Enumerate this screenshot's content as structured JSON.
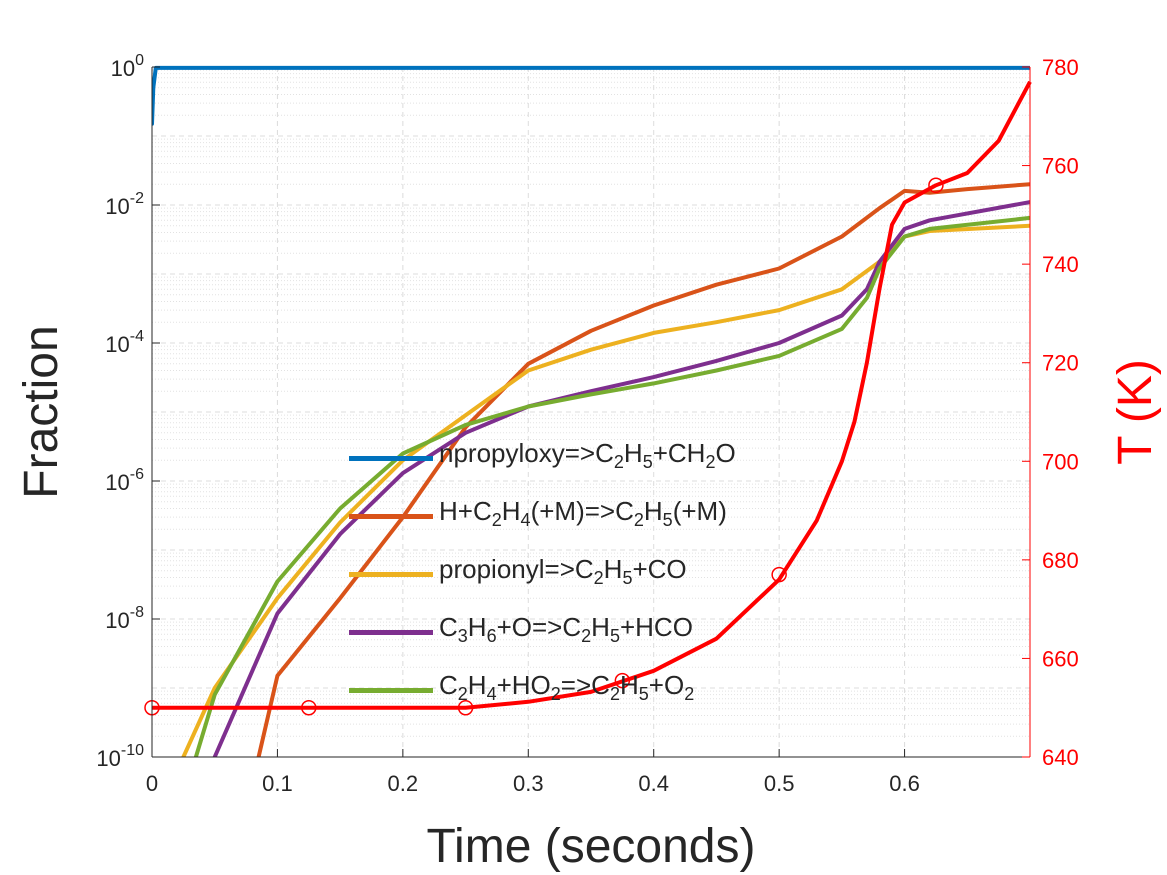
{
  "chart_data": {
    "type": "line",
    "xlabel": "Time (seconds)",
    "ylabel": "Fraction",
    "y2label": "T (K)",
    "xlim": [
      0,
      0.7
    ],
    "ylim": [
      1e-10,
      1
    ],
    "y2lim": [
      640,
      780
    ],
    "yscale": "log",
    "grid": true,
    "xticks": [
      "0",
      "0.1",
      "0.2",
      "0.3",
      "0.4",
      "0.5",
      "0.6"
    ],
    "yticks": [
      {
        "base": "10",
        "exp": "0"
      },
      {
        "base": "10",
        "exp": "-2"
      },
      {
        "base": "10",
        "exp": "-4"
      },
      {
        "base": "10",
        "exp": "-6"
      },
      {
        "base": "10",
        "exp": "-8"
      },
      {
        "base": "10",
        "exp": "-10"
      }
    ],
    "y2ticks": [
      "780",
      "760",
      "740",
      "720",
      "700",
      "680",
      "660",
      "640"
    ],
    "legend_position": "center",
    "series": [
      {
        "name": "npropyloxy=>C2H5+CH2O",
        "label_parts": [
          [
            "npropyloxy=>C",
            ""
          ],
          [
            "2",
            "sub"
          ],
          [
            "H",
            ""
          ],
          [
            "5",
            "sub"
          ],
          [
            "+CH",
            ""
          ],
          [
            "2",
            "sub"
          ],
          [
            "O",
            ""
          ]
        ],
        "color": "#0072bd",
        "points": [
          [
            0,
            0.15
          ],
          [
            0.001,
            0.5
          ],
          [
            0.003,
            0.97
          ],
          [
            0.7,
            0.97
          ]
        ]
      },
      {
        "name": "H+C2H4(+M)=>C2H5(+M)",
        "label_parts": [
          [
            "H+C",
            ""
          ],
          [
            "2",
            "sub"
          ],
          [
            "H",
            ""
          ],
          [
            "4",
            "sub"
          ],
          [
            "(+M)=>C",
            ""
          ],
          [
            "2",
            "sub"
          ],
          [
            "H",
            ""
          ],
          [
            "5",
            "sub"
          ],
          [
            "(+M)",
            ""
          ]
        ],
        "color": "#d95319",
        "points": [
          [
            0.085,
            1e-10
          ],
          [
            0.1,
            1.5e-09
          ],
          [
            0.15,
            2e-08
          ],
          [
            0.2,
            3e-07
          ],
          [
            0.25,
            6e-06
          ],
          [
            0.3,
            5e-05
          ],
          [
            0.35,
            0.00015
          ],
          [
            0.4,
            0.00035
          ],
          [
            0.45,
            0.0007
          ],
          [
            0.5,
            0.0012
          ],
          [
            0.55,
            0.0035
          ],
          [
            0.58,
            0.009
          ],
          [
            0.6,
            0.016
          ],
          [
            0.62,
            0.015
          ],
          [
            0.65,
            0.017
          ],
          [
            0.7,
            0.02
          ]
        ]
      },
      {
        "name": "propionyl=>C2H5+CO",
        "label_parts": [
          [
            "propionyl=>C",
            ""
          ],
          [
            "2",
            "sub"
          ],
          [
            "H",
            ""
          ],
          [
            "5",
            "sub"
          ],
          [
            "+CO",
            ""
          ]
        ],
        "color": "#edb120",
        "points": [
          [
            0.025,
            1e-10
          ],
          [
            0.05,
            1e-09
          ],
          [
            0.1,
            2e-08
          ],
          [
            0.15,
            2.5e-07
          ],
          [
            0.2,
            2e-06
          ],
          [
            0.25,
            9e-06
          ],
          [
            0.3,
            4e-05
          ],
          [
            0.35,
            8e-05
          ],
          [
            0.4,
            0.00014
          ],
          [
            0.45,
            0.0002
          ],
          [
            0.5,
            0.0003
          ],
          [
            0.55,
            0.0006
          ],
          [
            0.58,
            0.0015
          ],
          [
            0.6,
            0.0035
          ],
          [
            0.62,
            0.0042
          ],
          [
            0.7,
            0.005
          ]
        ]
      },
      {
        "name": "C3H6+O=>C2H5+HCO",
        "label_parts": [
          [
            "C",
            ""
          ],
          [
            "3",
            "sub"
          ],
          [
            "H",
            ""
          ],
          [
            "6",
            "sub"
          ],
          [
            "+O=>C",
            ""
          ],
          [
            "2",
            "sub"
          ],
          [
            "H",
            ""
          ],
          [
            "5",
            "sub"
          ],
          [
            "+HCO",
            ""
          ]
        ],
        "color": "#7e2f8e",
        "points": [
          [
            0.05,
            1e-10
          ],
          [
            0.1,
            1.2e-08
          ],
          [
            0.15,
            1.7e-07
          ],
          [
            0.2,
            1.3e-06
          ],
          [
            0.25,
            5e-06
          ],
          [
            0.3,
            1.2e-05
          ],
          [
            0.35,
            2e-05
          ],
          [
            0.4,
            3.2e-05
          ],
          [
            0.45,
            5.5e-05
          ],
          [
            0.5,
            0.0001
          ],
          [
            0.55,
            0.00025
          ],
          [
            0.57,
            0.0006
          ],
          [
            0.58,
            0.0015
          ],
          [
            0.6,
            0.0045
          ],
          [
            0.62,
            0.006
          ],
          [
            0.7,
            0.011
          ]
        ]
      },
      {
        "name": "C2H4+HO2=>C2H5+O2",
        "label_parts": [
          [
            "C",
            ""
          ],
          [
            "2",
            "sub"
          ],
          [
            "H",
            ""
          ],
          [
            "4",
            "sub"
          ],
          [
            "+HO",
            ""
          ],
          [
            "2",
            "sub"
          ],
          [
            "=>C",
            ""
          ],
          [
            "2",
            "sub"
          ],
          [
            "H",
            ""
          ],
          [
            "5",
            "sub"
          ],
          [
            "+O",
            ""
          ],
          [
            "2",
            "sub"
          ]
        ],
        "color": "#77ac30",
        "points": [
          [
            0.035,
            1e-10
          ],
          [
            0.05,
            8e-10
          ],
          [
            0.1,
            3.5e-08
          ],
          [
            0.15,
            4e-07
          ],
          [
            0.2,
            2.5e-06
          ],
          [
            0.25,
            6.5e-06
          ],
          [
            0.3,
            1.2e-05
          ],
          [
            0.35,
            1.8e-05
          ],
          [
            0.4,
            2.6e-05
          ],
          [
            0.45,
            4e-05
          ],
          [
            0.5,
            6.5e-05
          ],
          [
            0.55,
            0.00016
          ],
          [
            0.57,
            0.00045
          ],
          [
            0.58,
            0.0012
          ],
          [
            0.6,
            0.0035
          ],
          [
            0.62,
            0.0045
          ],
          [
            0.7,
            0.0065
          ]
        ]
      }
    ],
    "temperature": {
      "name": "T",
      "color": "#ff0000",
      "points": [
        [
          0,
          650
        ],
        [
          0.25,
          650
        ],
        [
          0.3,
          651.2
        ],
        [
          0.35,
          653.2
        ],
        [
          0.4,
          657.5
        ],
        [
          0.45,
          664
        ],
        [
          0.5,
          676
        ],
        [
          0.53,
          688
        ],
        [
          0.55,
          700
        ],
        [
          0.56,
          708
        ],
        [
          0.57,
          720
        ],
        [
          0.58,
          735
        ],
        [
          0.59,
          748
        ],
        [
          0.6,
          752.5
        ],
        [
          0.625,
          756
        ],
        [
          0.65,
          758.5
        ],
        [
          0.675,
          765
        ],
        [
          0.7,
          777
        ]
      ],
      "markers": [
        [
          0,
          650
        ],
        [
          0.125,
          650
        ],
        [
          0.25,
          650
        ],
        [
          0.375,
          655.5
        ],
        [
          0.5,
          677
        ],
        [
          0.625,
          756
        ]
      ]
    }
  }
}
